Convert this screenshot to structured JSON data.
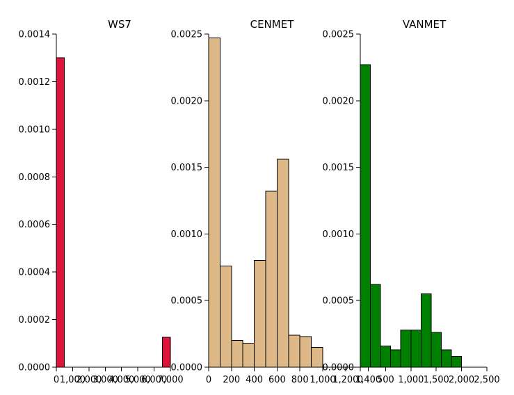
{
  "chart_data": [
    {
      "type": "bar",
      "title": "WS7",
      "color": "#dc143c",
      "ylim": [
        0,
        0.0014
      ],
      "yticks": [
        "0.0000",
        "0.0002",
        "0.0004",
        "0.0006",
        "0.0008",
        "0.0010",
        "0.0012",
        "0.0014"
      ],
      "xlim": [
        0,
        7000
      ],
      "xticks": [
        "0",
        "1,000",
        "2,000",
        "3,000",
        "4,000",
        "5,000",
        "6,000",
        "7,000"
      ],
      "bins": [
        {
          "x0": 0,
          "x1": 500,
          "value": 0.0013
        },
        {
          "x0": 6500,
          "x1": 7000,
          "value": 0.000125
        }
      ]
    },
    {
      "type": "bar",
      "title": "CENMET",
      "color": "#deb887",
      "ylim": [
        0,
        0.0025
      ],
      "yticks": [
        "0.0000",
        "0.0005",
        "0.0010",
        "0.0015",
        "0.0020",
        "0.0025"
      ],
      "xlim": [
        0,
        1000
      ],
      "xticks": [
        "0",
        "200",
        "400",
        "600",
        "800",
        "1,000",
        "1,200",
        "1,400"
      ],
      "bins": [
        {
          "x0": 0,
          "x1": 100,
          "value": 0.00247
        },
        {
          "x0": 100,
          "x1": 200,
          "value": 0.00076
        },
        {
          "x0": 200,
          "x1": 300,
          "value": 0.0002
        },
        {
          "x0": 300,
          "x1": 400,
          "value": 0.00018
        },
        {
          "x0": 400,
          "x1": 500,
          "value": 0.0008
        },
        {
          "x0": 500,
          "x1": 600,
          "value": 0.00132
        },
        {
          "x0": 600,
          "x1": 700,
          "value": 0.00156
        },
        {
          "x0": 700,
          "x1": 800,
          "value": 0.00024
        },
        {
          "x0": 800,
          "x1": 900,
          "value": 0.00023
        },
        {
          "x0": 900,
          "x1": 1000,
          "value": 0.00015
        }
      ]
    },
    {
      "type": "bar",
      "title": "VANMET",
      "color": "#008000",
      "ylim": [
        0,
        0.0025
      ],
      "yticks": [
        "0.0000",
        "0.0005",
        "0.0010",
        "0.0015",
        "0.0020",
        "0.0025"
      ],
      "xlim": [
        0,
        2500
      ],
      "xticks": [
        "0",
        "500",
        "1,000",
        "1,500",
        "2,000",
        "2,500"
      ],
      "bins": [
        {
          "x0": 0,
          "x1": 200,
          "value": 0.00227
        },
        {
          "x0": 200,
          "x1": 400,
          "value": 0.00062
        },
        {
          "x0": 400,
          "x1": 600,
          "value": 0.00016
        },
        {
          "x0": 600,
          "x1": 800,
          "value": 0.00013
        },
        {
          "x0": 800,
          "x1": 1000,
          "value": 0.00028
        },
        {
          "x0": 1000,
          "x1": 1200,
          "value": 0.00028
        },
        {
          "x0": 1200,
          "x1": 1400,
          "value": 0.00055
        },
        {
          "x0": 1400,
          "x1": 1600,
          "value": 0.00026
        },
        {
          "x0": 1600,
          "x1": 1800,
          "value": 0.00013
        },
        {
          "x0": 1800,
          "x1": 2000,
          "value": 8e-05
        }
      ]
    }
  ]
}
